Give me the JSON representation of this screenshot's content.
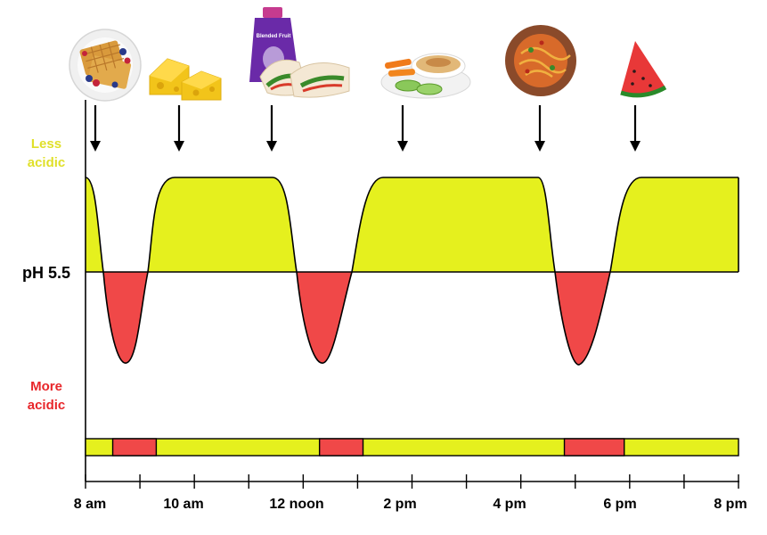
{
  "chart_data": {
    "type": "area",
    "title": "",
    "ylabel_top": [
      "Less",
      "acidic"
    ],
    "ylabel_bottom": [
      "More",
      "acidic"
    ],
    "threshold_label": "pH 5.5",
    "x_ticks": [
      "8 am",
      "10 am",
      "12 noon",
      "2 pm",
      "4 pm",
      "6 pm",
      "8 pm"
    ],
    "x_range_hours": [
      8,
      20
    ],
    "meals": [
      {
        "name": "waffles with berries",
        "hour": 8.2,
        "icon": "waffle-plate-icon"
      },
      {
        "name": "cheese",
        "hour": 9.8,
        "icon": "cheese-icon"
      },
      {
        "name": "blended fruit pouch and wrap",
        "hour": 11.5,
        "icon": "pouch-wrap-icon",
        "pouch_text": "Blended Fruit"
      },
      {
        "name": "vegetables and dip",
        "hour": 14.0,
        "icon": "veggie-dip-icon"
      },
      {
        "name": "pasta",
        "hour": 16.6,
        "icon": "pasta-bowl-icon"
      },
      {
        "name": "watermelon",
        "hour": 18.3,
        "icon": "watermelon-icon"
      }
    ],
    "acidic_periods_hours": [
      [
        8.5,
        9.3
      ],
      [
        12.3,
        13.1
      ],
      [
        16.8,
        17.9
      ]
    ],
    "colors": {
      "safe": "#e5f01e",
      "acidic": "#f04848",
      "label_less": "#e0e02a",
      "label_more": "#e8262a"
    }
  }
}
